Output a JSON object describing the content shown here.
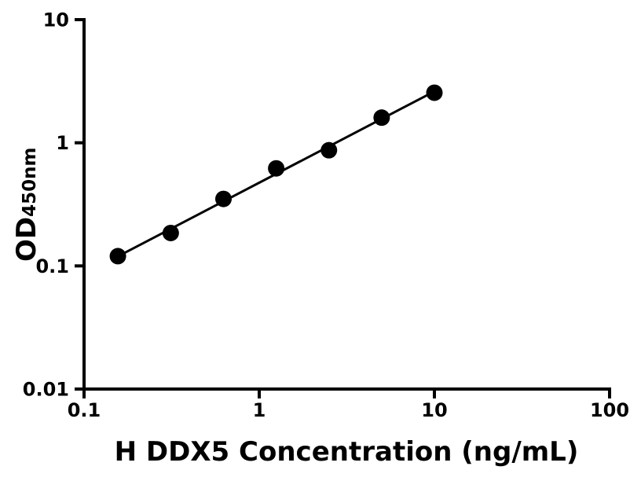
{
  "figure": {
    "background_color": "#ffffff",
    "ink_color": "#000000"
  },
  "chart_data": {
    "type": "scatter",
    "x": [
      0.156,
      0.3125,
      0.625,
      1.25,
      2.5,
      5,
      10
    ],
    "y": [
      0.12,
      0.185,
      0.35,
      0.62,
      0.87,
      1.6,
      2.55
    ],
    "xlabel": "H DDX5 Concentration (ng/mL)",
    "ylabel_main": "OD",
    "ylabel_sub": "450nm",
    "x_scale": "log",
    "y_scale": "log",
    "xlim": [
      0.1,
      100
    ],
    "ylim": [
      0.01,
      10
    ],
    "x_tick_labels": [
      "0.1",
      "1",
      "10",
      "100"
    ],
    "y_tick_labels": [
      "0.01",
      "0.1",
      "1",
      "10"
    ],
    "grid": false,
    "legend": false,
    "marker": "filled-circle",
    "marker_color": "#000000",
    "line": "linear-fit-loglog",
    "line_color": "#000000"
  }
}
